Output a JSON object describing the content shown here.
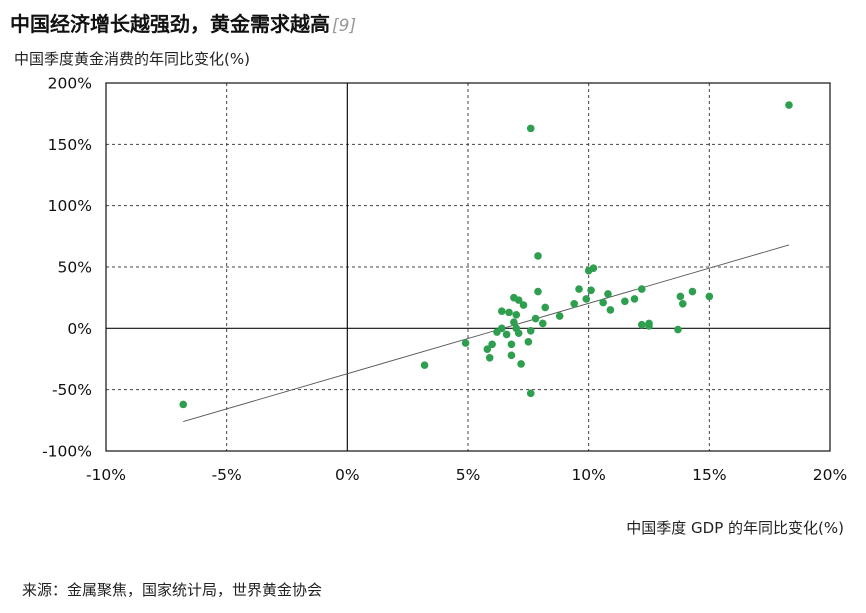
{
  "header": {
    "title": "中国经济增长越强劲，黄金需求越高",
    "title_ref": "[9]"
  },
  "source": "来源：金属聚焦，国家统计局，世界黄金协会",
  "chart_data": {
    "type": "scatter",
    "title": "中国经济增长越强劲，黄金需求越高",
    "xlabel": "中国季度 GDP 的年同比变化(%)",
    "ylabel": "中国季度黄金消费的年同比变化(%)",
    "xlim": [
      -10,
      20
    ],
    "ylim": [
      -100,
      200
    ],
    "x_ticks": [
      -10,
      -5,
      0,
      5,
      10,
      15,
      20
    ],
    "y_ticks": [
      -100,
      -50,
      0,
      50,
      100,
      150,
      200
    ],
    "x_tick_labels": [
      "-10%",
      "-5%",
      "0%",
      "5%",
      "10%",
      "15%",
      "20%"
    ],
    "y_tick_labels": [
      "-100%",
      "-50%",
      "0%",
      "50%",
      "100%",
      "150%",
      "200%"
    ],
    "grid": true,
    "point_color": "#2e9e4f",
    "trendline": {
      "x": [
        -6.8,
        18.3
      ],
      "y": [
        -76,
        68
      ]
    },
    "points": [
      {
        "x": -6.8,
        "y": -62
      },
      {
        "x": 3.2,
        "y": -30
      },
      {
        "x": 4.9,
        "y": -12
      },
      {
        "x": 5.8,
        "y": -17
      },
      {
        "x": 5.9,
        "y": -24
      },
      {
        "x": 6.0,
        "y": -13
      },
      {
        "x": 6.2,
        "y": -3
      },
      {
        "x": 6.4,
        "y": 14
      },
      {
        "x": 6.4,
        "y": 0
      },
      {
        "x": 6.6,
        "y": -5
      },
      {
        "x": 6.7,
        "y": 13
      },
      {
        "x": 6.8,
        "y": -13
      },
      {
        "x": 6.8,
        "y": -22
      },
      {
        "x": 6.9,
        "y": 5
      },
      {
        "x": 6.9,
        "y": 25
      },
      {
        "x": 7.0,
        "y": 11
      },
      {
        "x": 7.0,
        "y": 0
      },
      {
        "x": 7.1,
        "y": -4
      },
      {
        "x": 7.1,
        "y": 23
      },
      {
        "x": 7.2,
        "y": -29
      },
      {
        "x": 7.3,
        "y": 19
      },
      {
        "x": 7.5,
        "y": -11
      },
      {
        "x": 7.6,
        "y": -2
      },
      {
        "x": 7.6,
        "y": -53
      },
      {
        "x": 7.6,
        "y": 163
      },
      {
        "x": 7.8,
        "y": 8
      },
      {
        "x": 7.9,
        "y": 30
      },
      {
        "x": 7.9,
        "y": 59
      },
      {
        "x": 8.1,
        "y": 4
      },
      {
        "x": 8.2,
        "y": 17
      },
      {
        "x": 8.8,
        "y": 10
      },
      {
        "x": 9.4,
        "y": 20
      },
      {
        "x": 9.6,
        "y": 32
      },
      {
        "x": 9.9,
        "y": 24
      },
      {
        "x": 10.0,
        "y": 47
      },
      {
        "x": 10.1,
        "y": 31
      },
      {
        "x": 10.2,
        "y": 49
      },
      {
        "x": 10.6,
        "y": 21
      },
      {
        "x": 10.8,
        "y": 28
      },
      {
        "x": 10.9,
        "y": 15
      },
      {
        "x": 11.5,
        "y": 22
      },
      {
        "x": 11.9,
        "y": 24
      },
      {
        "x": 12.2,
        "y": 32
      },
      {
        "x": 12.2,
        "y": 3
      },
      {
        "x": 12.5,
        "y": 2
      },
      {
        "x": 12.5,
        "y": 4
      },
      {
        "x": 13.7,
        "y": -1
      },
      {
        "x": 13.8,
        "y": 26
      },
      {
        "x": 13.9,
        "y": 20
      },
      {
        "x": 14.3,
        "y": 30
      },
      {
        "x": 15.0,
        "y": 26
      },
      {
        "x": 18.3,
        "y": 182
      }
    ]
  }
}
